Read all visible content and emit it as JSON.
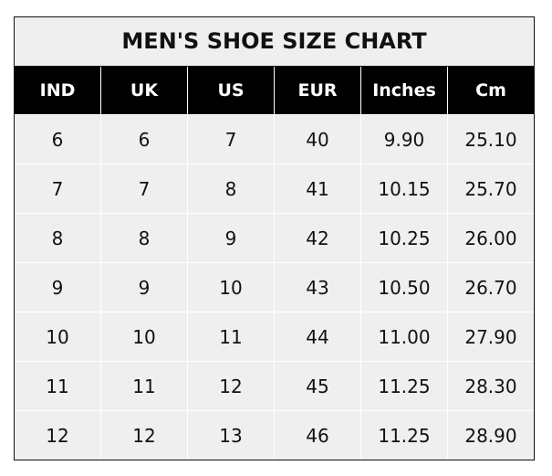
{
  "title": "MEN'S SHOE SIZE CHART",
  "headers": [
    "IND",
    "UK",
    "US",
    "EUR",
    "Inches",
    "Cm"
  ],
  "rows": [
    [
      "6",
      "6",
      "7",
      "40",
      "9.90",
      "25.10"
    ],
    [
      "7",
      "7",
      "8",
      "41",
      "10.15",
      "25.70"
    ],
    [
      "8",
      "8",
      "9",
      "42",
      "10.25",
      "26.00"
    ],
    [
      "9",
      "9",
      "10",
      "43",
      "10.50",
      "26.70"
    ],
    [
      "10",
      "10",
      "11",
      "44",
      "11.00",
      "27.90"
    ],
    [
      "11",
      "11",
      "12",
      "45",
      "11.25",
      "28.30"
    ],
    [
      "12",
      "12",
      "13",
      "46",
      "11.25",
      "28.90"
    ]
  ],
  "colors": {
    "header_bg": "#000000",
    "cell_bg": "#efefef",
    "grid": "#ffffff"
  }
}
